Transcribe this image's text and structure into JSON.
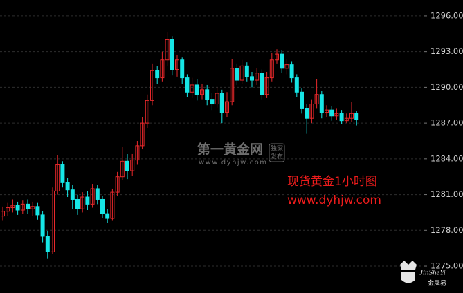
{
  "chart_data": {
    "type": "candlestick",
    "open": [
      1279.2,
      1279.6,
      1279.9,
      1280.1,
      1279.7,
      1280.2,
      1279.8,
      1280.0,
      1279.3,
      1277.5,
      1276.2,
      1281.3,
      1283.5,
      1282.0,
      1281.4,
      1280.6,
      1279.8,
      1280.8,
      1280.2,
      1281.5,
      1280.6,
      1279.4,
      1279.0,
      1281.2,
      1282.5,
      1283.8,
      1283.0,
      1283.9,
      1285.1,
      1287.0,
      1288.9,
      1291.4,
      1290.8,
      1292.3,
      1294.0,
      1291.5,
      1292.3,
      1290.8,
      1289.6,
      1290.2,
      1289.4,
      1289.8,
      1289.0,
      1288.6,
      1289.5,
      1287.9,
      1288.8,
      1291.6,
      1290.6,
      1291.8,
      1290.9,
      1290.6,
      1291.2,
      1289.4,
      1290.8,
      1292.3,
      1292.8,
      1291.6,
      1291.9,
      1290.8,
      1289.6,
      1288.2,
      1287.4,
      1288.6,
      1289.4,
      1287.9,
      1288.1,
      1287.6,
      1287.8,
      1287.2,
      1287.4,
      1287.8
    ],
    "high": [
      1280.0,
      1280.3,
      1280.6,
      1280.4,
      1280.5,
      1280.6,
      1280.4,
      1280.3,
      1279.6,
      1277.9,
      1281.6,
      1284.3,
      1283.8,
      1282.4,
      1281.8,
      1281.0,
      1281.2,
      1281.3,
      1281.9,
      1281.8,
      1280.9,
      1279.8,
      1281.5,
      1282.9,
      1285.0,
      1284.4,
      1284.4,
      1285.5,
      1287.5,
      1289.4,
      1292.0,
      1291.8,
      1293.0,
      1294.6,
      1294.3,
      1292.7,
      1292.5,
      1291.1,
      1290.8,
      1290.7,
      1290.3,
      1290.2,
      1289.5,
      1290.0,
      1289.8,
      1289.6,
      1292.4,
      1292.0,
      1292.3,
      1292.1,
      1291.3,
      1291.6,
      1291.5,
      1291.3,
      1292.9,
      1293.2,
      1293.1,
      1292.4,
      1292.2,
      1291.1,
      1289.9,
      1288.6,
      1289.0,
      1290.7,
      1289.7,
      1288.5,
      1288.4,
      1288.2,
      1288.1,
      1287.8,
      1288.8,
      1288.0
    ],
    "low": [
      1278.8,
      1279.2,
      1279.5,
      1279.3,
      1279.4,
      1279.4,
      1279.2,
      1278.9,
      1277.0,
      1275.6,
      1276.0,
      1281.0,
      1281.6,
      1280.8,
      1279.8,
      1279.3,
      1279.5,
      1279.7,
      1279.9,
      1280.2,
      1279.0,
      1278.6,
      1278.8,
      1280.9,
      1282.2,
      1282.3,
      1282.6,
      1283.5,
      1284.8,
      1286.6,
      1288.5,
      1290.3,
      1290.5,
      1291.8,
      1291.0,
      1290.9,
      1290.3,
      1289.2,
      1289.1,
      1288.9,
      1289.0,
      1288.5,
      1288.1,
      1288.3,
      1287.0,
      1287.5,
      1288.5,
      1290.2,
      1290.3,
      1290.5,
      1290.0,
      1290.2,
      1289.0,
      1289.1,
      1290.5,
      1292.0,
      1291.2,
      1291.1,
      1290.4,
      1289.2,
      1287.8,
      1286.1,
      1287.0,
      1288.2,
      1287.4,
      1287.5,
      1287.2,
      1287.3,
      1286.9,
      1287.0,
      1287.1,
      1286.8
    ],
    "close": [
      1279.6,
      1279.9,
      1280.1,
      1279.7,
      1280.2,
      1279.8,
      1280.0,
      1279.3,
      1277.5,
      1276.2,
      1281.3,
      1283.5,
      1282.0,
      1281.4,
      1280.6,
      1279.8,
      1280.8,
      1280.2,
      1281.5,
      1280.6,
      1279.4,
      1279.0,
      1281.2,
      1282.5,
      1283.8,
      1283.0,
      1283.9,
      1285.1,
      1287.0,
      1288.9,
      1291.4,
      1290.8,
      1292.3,
      1294.0,
      1291.5,
      1292.3,
      1290.8,
      1289.6,
      1290.2,
      1289.4,
      1289.8,
      1289.0,
      1288.6,
      1289.5,
      1287.9,
      1288.8,
      1291.6,
      1290.6,
      1291.8,
      1290.9,
      1290.6,
      1291.2,
      1289.4,
      1290.8,
      1292.3,
      1292.8,
      1291.6,
      1291.9,
      1290.8,
      1289.6,
      1288.2,
      1287.4,
      1288.6,
      1289.4,
      1287.9,
      1288.1,
      1287.6,
      1287.8,
      1287.2,
      1287.4,
      1287.8,
      1287.3
    ],
    "up_color": "#e8282b",
    "down_color": "#16e6e6",
    "ylim": [
      1272.74,
      1297.33
    ],
    "yticks": [
      {
        "value": 1275,
        "label": "1275.00"
      },
      {
        "value": 1278,
        "label": "1278.00"
      },
      {
        "value": 1281,
        "label": "1281.00"
      },
      {
        "value": 1284,
        "label": "1284.00"
      },
      {
        "value": 1287,
        "label": "1287.00"
      },
      {
        "value": 1290,
        "label": "1290.00"
      },
      {
        "value": 1293,
        "label": "1293.00"
      },
      {
        "value": 1296,
        "label": "1296.00"
      }
    ],
    "grid": true
  },
  "watermark": {
    "site_name": "第一黄金网",
    "badge_line1": "独家",
    "badge_line2": "发布",
    "site_url": "www.dyhjw.com"
  },
  "caption": {
    "title": "现货黄金1小时图",
    "url": "www.dyhjw.com"
  },
  "logo": {
    "name": "JinSheYi",
    "chinese": "金晟易"
  }
}
